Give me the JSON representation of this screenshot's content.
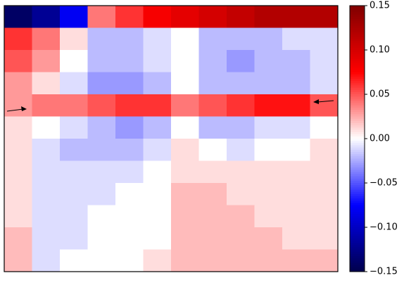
{
  "chart_data": {
    "type": "heatmap",
    "colormap": "seismic",
    "zlim": [
      -0.15,
      0.15
    ],
    "zticks": [
      {
        "value": 0.15,
        "label": "0.15"
      },
      {
        "value": 0.1,
        "label": "0.10"
      },
      {
        "value": 0.05,
        "label": "0.05"
      },
      {
        "value": 0,
        "label": "0.00"
      },
      {
        "value": -0.05,
        "label": "−0.05"
      },
      {
        "value": -0.1,
        "label": "−0.10"
      },
      {
        "value": -0.15,
        "label": "−0.15"
      }
    ],
    "values": [
      [
        -0.14,
        -0.12,
        -0.08,
        0.04,
        0.06,
        0.08,
        0.09,
        0.1,
        0.11,
        0.12,
        0.12,
        0.12
      ],
      [
        0.06,
        0.04,
        0.01,
        -0.02,
        -0.02,
        -0.01,
        0.0,
        -0.02,
        -0.02,
        -0.02,
        -0.01,
        -0.01
      ],
      [
        0.05,
        0.03,
        0.0,
        -0.02,
        -0.02,
        -0.01,
        0.0,
        -0.02,
        -0.03,
        -0.02,
        -0.02,
        -0.01
      ],
      [
        0.03,
        0.01,
        -0.01,
        -0.03,
        -0.03,
        -0.02,
        0.0,
        -0.02,
        -0.02,
        -0.02,
        -0.02,
        -0.01
      ],
      [
        0.03,
        0.04,
        0.04,
        0.05,
        0.06,
        0.06,
        0.04,
        0.05,
        0.06,
        0.07,
        0.07,
        0.05
      ],
      [
        0.01,
        0.0,
        -0.01,
        -0.02,
        -0.03,
        -0.02,
        0.0,
        -0.02,
        -0.02,
        -0.01,
        -0.01,
        0.0
      ],
      [
        0.01,
        -0.01,
        -0.02,
        -0.02,
        -0.02,
        -0.01,
        0.01,
        0.0,
        -0.01,
        0.0,
        0.0,
        0.01
      ],
      [
        0.01,
        -0.01,
        -0.01,
        -0.01,
        -0.01,
        0.0,
        0.01,
        0.01,
        0.01,
        0.01,
        0.01,
        0.01
      ],
      [
        0.01,
        -0.01,
        -0.01,
        -0.01,
        0.0,
        0.0,
        0.02,
        0.02,
        0.01,
        0.01,
        0.01,
        0.01
      ],
      [
        0.01,
        -0.01,
        -0.01,
        0.0,
        0.0,
        0.0,
        0.02,
        0.02,
        0.02,
        0.01,
        0.01,
        0.01
      ],
      [
        0.02,
        -0.01,
        -0.01,
        0.0,
        0.0,
        0.0,
        0.02,
        0.02,
        0.02,
        0.02,
        0.01,
        0.01
      ],
      [
        0.02,
        -0.01,
        0.0,
        0.0,
        0.0,
        0.01,
        0.02,
        0.02,
        0.02,
        0.02,
        0.02,
        0.02
      ]
    ]
  }
}
